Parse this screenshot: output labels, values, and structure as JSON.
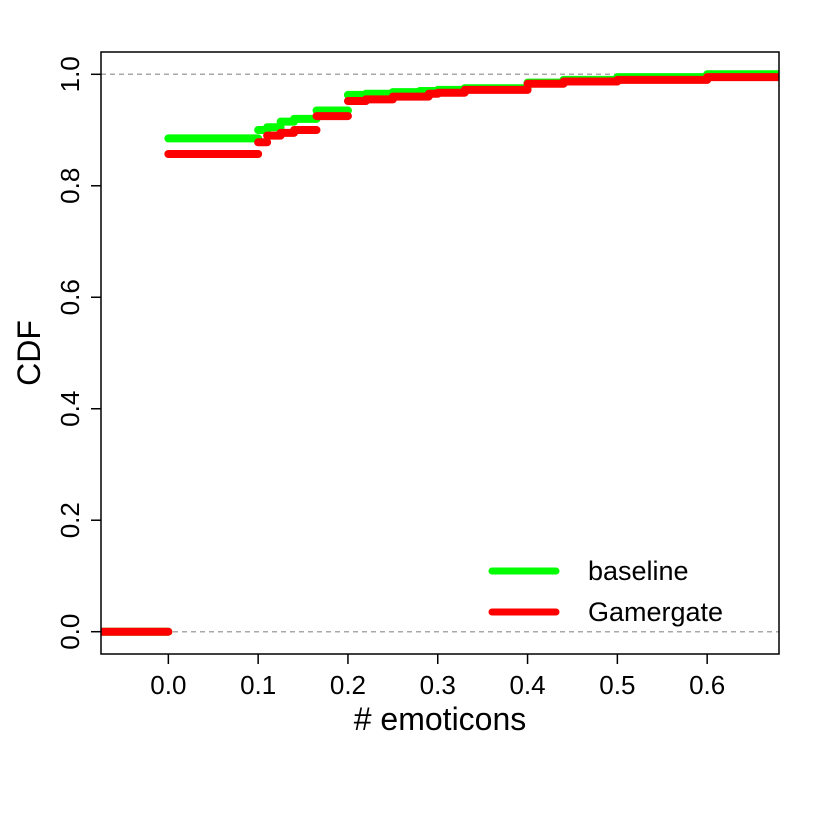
{
  "chart_data": {
    "type": "line",
    "title": "",
    "xlabel": "# emoticons",
    "ylabel": "CDF",
    "xlim": [
      -0.075,
      0.68
    ],
    "ylim": [
      -0.04,
      1.04
    ],
    "xticks": [
      0.0,
      0.1,
      0.2,
      0.3,
      0.4,
      0.5,
      0.6
    ],
    "xtick_labels": [
      "0.0",
      "0.1",
      "0.2",
      "0.3",
      "0.4",
      "0.5",
      "0.6"
    ],
    "yticks": [
      0.0,
      0.2,
      0.4,
      0.6,
      0.8,
      1.0
    ],
    "ytick_labels": [
      "0.0",
      "0.2",
      "0.4",
      "0.6",
      "0.8",
      "1.0"
    ],
    "reference_lines": [
      0,
      1
    ],
    "step": true,
    "legend_position": "bottom-right",
    "series": [
      {
        "name": "baseline",
        "color": "#00ff00",
        "steps": [
          [
            -0.075,
            0.0
          ],
          [
            0.0,
            0.885
          ],
          [
            0.1,
            0.9
          ],
          [
            0.11,
            0.905
          ],
          [
            0.125,
            0.915
          ],
          [
            0.14,
            0.92
          ],
          [
            0.165,
            0.935
          ],
          [
            0.2,
            0.963
          ],
          [
            0.22,
            0.965
          ],
          [
            0.25,
            0.968
          ],
          [
            0.28,
            0.97
          ],
          [
            0.3,
            0.972
          ],
          [
            0.33,
            0.975
          ],
          [
            0.4,
            0.985
          ],
          [
            0.44,
            0.99
          ],
          [
            0.5,
            0.995
          ],
          [
            0.6,
            1.0
          ]
        ]
      },
      {
        "name": "Gamergate",
        "color": "#ff0000",
        "steps": [
          [
            -0.075,
            0.0
          ],
          [
            0.0,
            0.857
          ],
          [
            0.1,
            0.878
          ],
          [
            0.11,
            0.89
          ],
          [
            0.125,
            0.895
          ],
          [
            0.14,
            0.9
          ],
          [
            0.165,
            0.925
          ],
          [
            0.2,
            0.952
          ],
          [
            0.22,
            0.955
          ],
          [
            0.25,
            0.96
          ],
          [
            0.29,
            0.965
          ],
          [
            0.3,
            0.967
          ],
          [
            0.33,
            0.972
          ],
          [
            0.4,
            0.983
          ],
          [
            0.44,
            0.987
          ],
          [
            0.5,
            0.99
          ],
          [
            0.6,
            0.995
          ]
        ]
      }
    ]
  }
}
